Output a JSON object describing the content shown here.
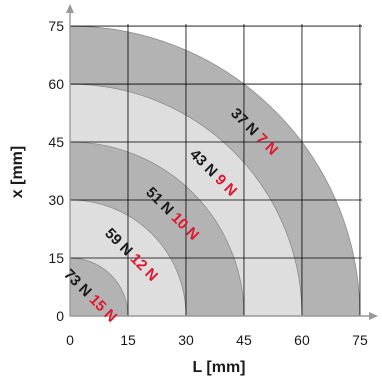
{
  "axes": {
    "x_label": "L [mm]",
    "y_label": "x [mm]",
    "x_ticks": [
      "0",
      "15",
      "30",
      "45",
      "60",
      "75"
    ],
    "y_ticks": [
      "0",
      "15",
      "30",
      "45",
      "60",
      "75"
    ],
    "x_range": [
      0,
      75
    ],
    "y_range": [
      0,
      75
    ],
    "grid": true
  },
  "zones": [
    {
      "outer_radius_mm": 75,
      "color": "#b3b3b3"
    },
    {
      "outer_radius_mm": 60,
      "color": "#dedede"
    },
    {
      "outer_radius_mm": 45,
      "color": "#b3b3b3"
    },
    {
      "outer_radius_mm": 30,
      "color": "#dedede"
    },
    {
      "outer_radius_mm": 15,
      "color": "#b3b3b3"
    }
  ],
  "rings": [
    {
      "black": "73 N",
      "red": "15 N"
    },
    {
      "black": "59 N",
      "red": "12 N"
    },
    {
      "black": "51 N",
      "red": "10 N"
    },
    {
      "black": "43 N",
      "red": "9 N"
    },
    {
      "black": "37 N",
      "red": "7 N"
    }
  ],
  "colors": {
    "black_label": "#1a1a1a",
    "red_label": "#e0182d",
    "grid": "#000000",
    "axis": "#999999"
  }
}
